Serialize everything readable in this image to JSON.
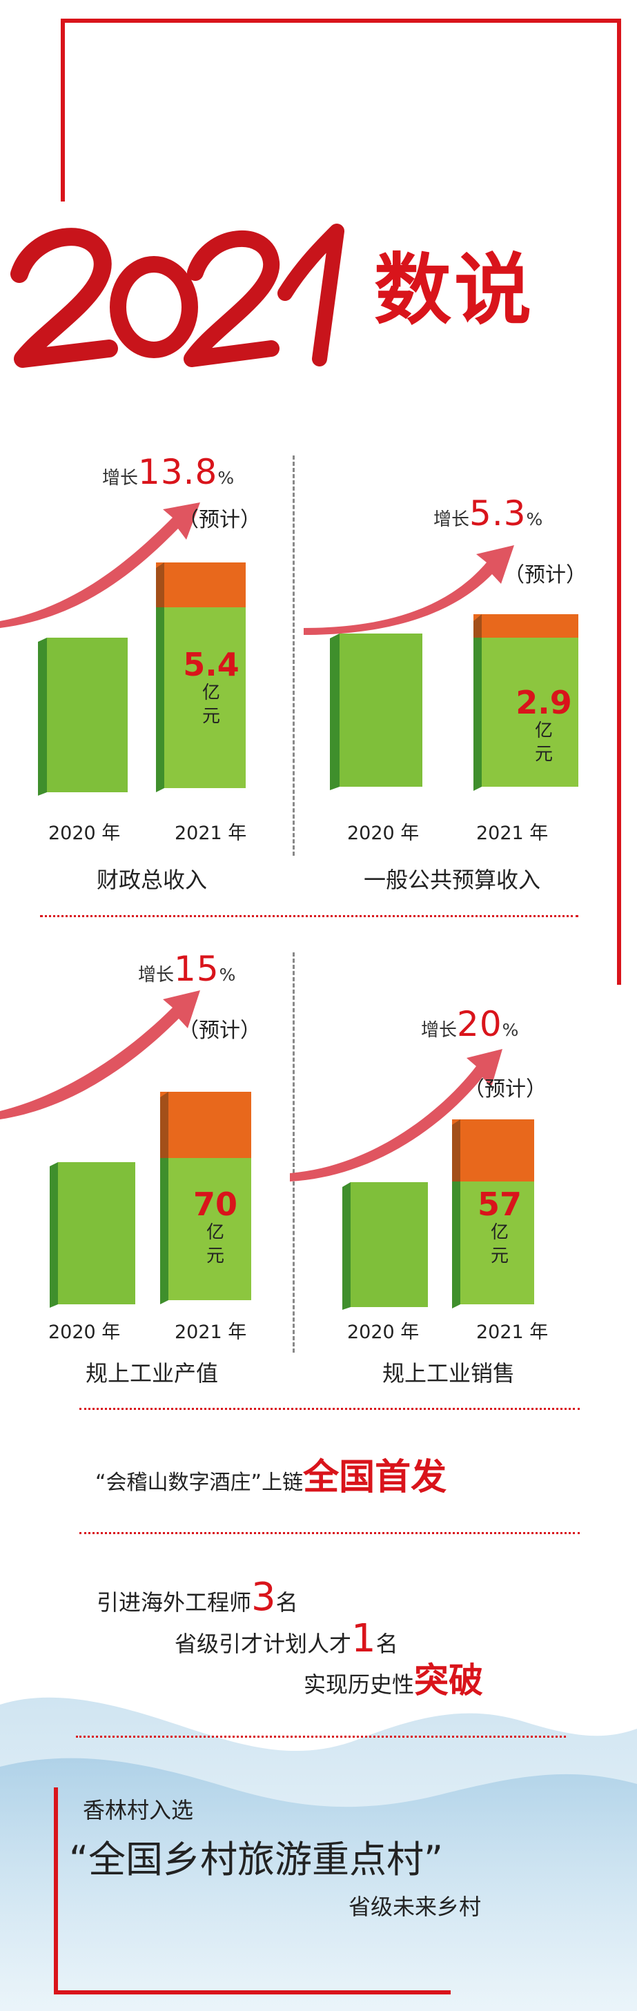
{
  "header": {
    "script_year": "2021",
    "title": "数说"
  },
  "colors": {
    "accent": "#d9141b",
    "bar_green_front": "#8cc63f",
    "bar_green_side": "#3f8f2c",
    "bar_orange": "#e8681c",
    "arrow": "#e05560"
  },
  "charts": [
    {
      "growth_label": "增长",
      "growth_value": "13.8",
      "growth_unit": "%",
      "estimate": "（预计）",
      "value_2021": "5.4",
      "value_unit": "亿元",
      "unit_line1": "亿",
      "unit_line2": "元",
      "year_a": "2020 年",
      "year_b": "2021 年",
      "title": "财政总收入"
    },
    {
      "growth_label": "增长",
      "growth_value": "5.3",
      "growth_unit": "%",
      "estimate": "（预计）",
      "value_2021": "2.9",
      "value_unit": "亿元",
      "unit_line1": "亿",
      "unit_line2": "元",
      "year_a": "2020 年",
      "year_b": "2021 年",
      "title": "一般公共预算收入"
    },
    {
      "growth_label": "增长",
      "growth_value": "15",
      "growth_unit": "%",
      "estimate": "（预计）",
      "value_2021": "70",
      "value_unit": "亿元",
      "unit_line1": "亿",
      "unit_line2": "元",
      "year_a": "2020 年",
      "year_b": "2021 年",
      "title": "规上工业产值"
    },
    {
      "growth_label": "增长",
      "growth_value": "20",
      "growth_unit": "%",
      "estimate": "（预计）",
      "value_2021": "57",
      "value_unit": "亿元",
      "unit_line1": "亿",
      "unit_line2": "元",
      "year_a": "2020 年",
      "year_b": "2021 年",
      "title": "规上工业销售"
    }
  ],
  "chart_data": [
    {
      "type": "bar",
      "title": "财政总收入",
      "categories": [
        "2020 年",
        "2021 年"
      ],
      "series": [
        {
          "values": [
            null,
            5.4
          ]
        }
      ],
      "growth_percent": 13.8,
      "annotation": "增长 13.8%（预计）"
    },
    {
      "type": "bar",
      "title": "一般公共预算收入",
      "categories": [
        "2020 年",
        "2021 年"
      ],
      "series": [
        {
          "values": [
            null,
            2.9
          ]
        }
      ],
      "growth_percent": 5.3,
      "annotation": "增长 5.3%（预计）"
    },
    {
      "type": "bar",
      "title": "规上工业产值",
      "categories": [
        "2020 年",
        "2021 年"
      ],
      "series": [
        {
          "values": [
            null,
            70
          ]
        }
      ],
      "growth_percent": 15,
      "annotation": "增长 15%（预计）"
    },
    {
      "type": "bar",
      "title": "规上工业销售",
      "categories": [
        "2020 年",
        "2021 年"
      ],
      "series": [
        {
          "values": [
            null,
            57
          ]
        }
      ],
      "growth_percent": 20,
      "annotation": "增长 20%（预计）"
    }
  ],
  "news": {
    "line1_pre": "“会稽山数字酒庄”上链",
    "line1_big": "全国首发",
    "line2_pre": "引进海外工程师",
    "line2_num": "3",
    "line2_post": "名",
    "line3_pre": "省级引才计划人才",
    "line3_num": "1",
    "line3_post": "名",
    "line4_pre": "实现历史性",
    "line4_big": "突破",
    "village_intro": "香林村入选",
    "village_big": "“全国乡村旅游重点村”",
    "village_sub": "省级未来乡村"
  }
}
